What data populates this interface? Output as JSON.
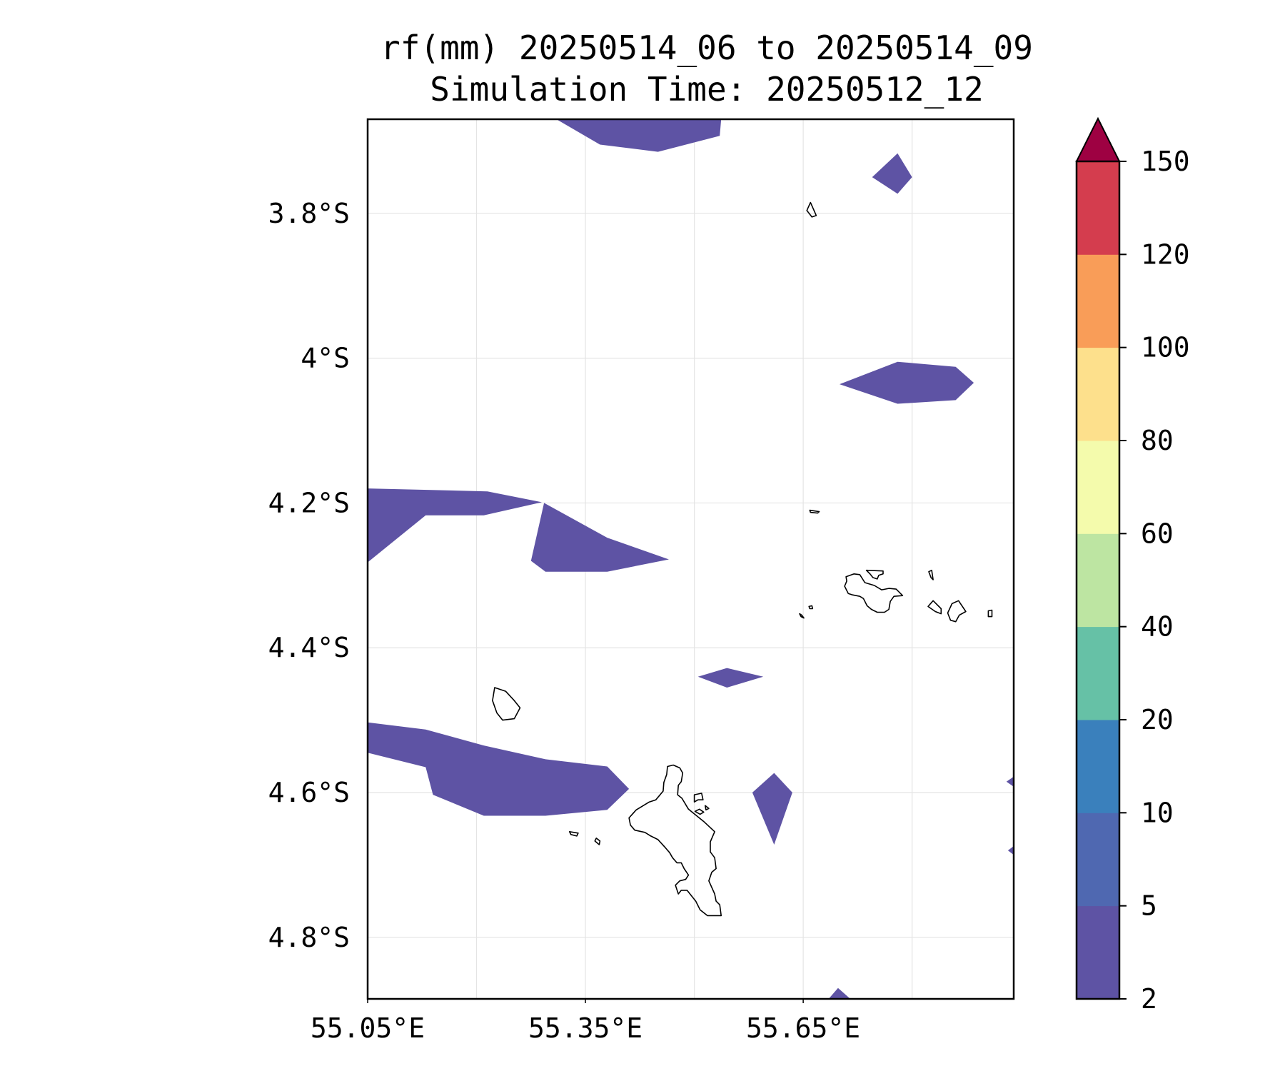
{
  "title": {
    "line1": "rf(mm) 20250514_06 to 20250514_09",
    "line2": "Simulation Time: 20250512_12"
  },
  "map": {
    "lon_range": [
      55.05,
      55.94
    ],
    "lat_range": [
      -3.67,
      -4.885
    ],
    "x_ticks": [
      {
        "lon": 55.05,
        "label": "55.05°E"
      },
      {
        "lon": 55.35,
        "label": "55.35°E"
      },
      {
        "lon": 55.65,
        "label": "55.65°E"
      }
    ],
    "x_gridlines": [
      55.2,
      55.35,
      55.5,
      55.65,
      55.8
    ],
    "y_ticks": [
      {
        "lat": -3.8,
        "label": "3.8°S"
      },
      {
        "lat": -4.0,
        "label": "4°S"
      },
      {
        "lat": -4.2,
        "label": "4.2°S"
      },
      {
        "lat": -4.4,
        "label": "4.4°S"
      },
      {
        "lat": -4.6,
        "label": "4.6°S"
      },
      {
        "lat": -4.8,
        "label": "4.8°S"
      }
    ],
    "grid": true,
    "rain_color": "#5e53a4",
    "rain_level": "2–5 mm",
    "rain_cells": [
      [
        [
          55.31,
          -3.67
        ],
        [
          55.37,
          -3.705
        ],
        [
          55.45,
          -3.715
        ],
        [
          55.535,
          -3.693
        ],
        [
          55.537,
          -3.67
        ]
      ],
      [
        [
          55.745,
          -3.75
        ],
        [
          55.78,
          -3.717
        ],
        [
          55.8,
          -3.75
        ],
        [
          55.78,
          -3.773
        ]
      ],
      [
        [
          55.7,
          -4.036
        ],
        [
          55.78,
          -4.005
        ],
        [
          55.86,
          -4.012
        ],
        [
          55.885,
          -4.034
        ],
        [
          55.86,
          -4.058
        ],
        [
          55.78,
          -4.063
        ]
      ],
      [
        [
          55.05,
          -4.18
        ],
        [
          55.215,
          -4.184
        ],
        [
          55.29,
          -4.199
        ],
        [
          55.21,
          -4.217
        ],
        [
          55.13,
          -4.217
        ],
        [
          55.05,
          -4.282
        ]
      ],
      [
        [
          55.293,
          -4.2
        ],
        [
          55.38,
          -4.248
        ],
        [
          55.465,
          -4.278
        ],
        [
          55.38,
          -4.295
        ],
        [
          55.295,
          -4.295
        ],
        [
          55.275,
          -4.28
        ]
      ],
      [
        [
          55.505,
          -4.44
        ],
        [
          55.545,
          -4.428
        ],
        [
          55.595,
          -4.44
        ],
        [
          55.545,
          -4.455
        ]
      ],
      [
        [
          55.05,
          -4.503
        ],
        [
          55.13,
          -4.513
        ],
        [
          55.21,
          -4.535
        ],
        [
          55.295,
          -4.554
        ],
        [
          55.38,
          -4.564
        ],
        [
          55.41,
          -4.595
        ],
        [
          55.38,
          -4.624
        ],
        [
          55.295,
          -4.632
        ],
        [
          55.21,
          -4.632
        ],
        [
          55.14,
          -4.603
        ],
        [
          55.13,
          -4.565
        ],
        [
          55.05,
          -4.545
        ]
      ],
      [
        [
          55.58,
          -4.6
        ],
        [
          55.61,
          -4.573
        ],
        [
          55.635,
          -4.6
        ],
        [
          55.61,
          -4.672
        ]
      ],
      [
        [
          55.685,
          -4.885
        ],
        [
          55.698,
          -4.87
        ],
        [
          55.715,
          -4.885
        ]
      ],
      [
        [
          55.94,
          -4.674
        ],
        [
          55.932,
          -4.68
        ],
        [
          55.94,
          -4.686
        ]
      ],
      [
        [
          55.93,
          -4.585
        ],
        [
          55.94,
          -4.578
        ],
        [
          55.94,
          -4.592
        ]
      ]
    ],
    "coastlines": [
      [
        [
          55.41,
          -4.635
        ],
        [
          55.42,
          -4.624
        ],
        [
          55.438,
          -4.613
        ],
        [
          55.447,
          -4.61
        ],
        [
          55.457,
          -4.598
        ],
        [
          55.458,
          -4.586
        ],
        [
          55.462,
          -4.575
        ],
        [
          55.463,
          -4.564
        ],
        [
          55.471,
          -4.562
        ],
        [
          55.48,
          -4.566
        ],
        [
          55.484,
          -4.573
        ],
        [
          55.482,
          -4.585
        ],
        [
          55.478,
          -4.59
        ],
        [
          55.477,
          -4.603
        ],
        [
          55.483,
          -4.608
        ],
        [
          55.492,
          -4.623
        ],
        [
          55.513,
          -4.64
        ],
        [
          55.528,
          -4.654
        ],
        [
          55.522,
          -4.668
        ],
        [
          55.522,
          -4.682
        ],
        [
          55.528,
          -4.69
        ],
        [
          55.53,
          -4.705
        ],
        [
          55.524,
          -4.71
        ],
        [
          55.52,
          -4.722
        ],
        [
          55.528,
          -4.74
        ],
        [
          55.53,
          -4.75
        ],
        [
          55.535,
          -4.755
        ],
        [
          55.537,
          -4.77
        ],
        [
          55.518,
          -4.77
        ],
        [
          55.508,
          -4.762
        ],
        [
          55.502,
          -4.75
        ],
        [
          55.494,
          -4.74
        ],
        [
          55.49,
          -4.735
        ],
        [
          55.482,
          -4.735
        ],
        [
          55.478,
          -4.74
        ],
        [
          55.474,
          -4.728
        ],
        [
          55.48,
          -4.722
        ],
        [
          55.488,
          -4.72
        ],
        [
          55.492,
          -4.714
        ],
        [
          55.486,
          -4.705
        ],
        [
          55.482,
          -4.697
        ],
        [
          55.476,
          -4.697
        ],
        [
          55.47,
          -4.69
        ],
        [
          55.466,
          -4.683
        ],
        [
          55.46,
          -4.676
        ],
        [
          55.45,
          -4.665
        ],
        [
          55.44,
          -4.66
        ],
        [
          55.432,
          -4.655
        ],
        [
          55.418,
          -4.652
        ],
        [
          55.412,
          -4.645
        ]
      ],
      [
        [
          55.225,
          -4.455
        ],
        [
          55.24,
          -4.46
        ],
        [
          55.252,
          -4.473
        ],
        [
          55.26,
          -4.483
        ],
        [
          55.252,
          -4.498
        ],
        [
          55.236,
          -4.5
        ],
        [
          55.228,
          -4.49
        ],
        [
          55.222,
          -4.473
        ]
      ],
      [
        [
          55.709,
          -4.302
        ],
        [
          55.72,
          -4.298
        ],
        [
          55.728,
          -4.299
        ],
        [
          55.735,
          -4.31
        ],
        [
          55.748,
          -4.314
        ],
        [
          55.758,
          -4.32
        ],
        [
          55.768,
          -4.318
        ],
        [
          55.778,
          -4.319
        ],
        [
          55.787,
          -4.328
        ],
        [
          55.775,
          -4.329
        ],
        [
          55.77,
          -4.336
        ],
        [
          55.768,
          -4.347
        ],
        [
          55.762,
          -4.351
        ],
        [
          55.752,
          -4.351
        ],
        [
          55.744,
          -4.347
        ],
        [
          55.738,
          -4.342
        ],
        [
          55.733,
          -4.332
        ],
        [
          55.728,
          -4.329
        ],
        [
          55.718,
          -4.327
        ],
        [
          55.712,
          -4.325
        ],
        [
          55.707,
          -4.315
        ],
        [
          55.71,
          -4.308
        ]
      ],
      [
        [
          55.737,
          -4.293
        ],
        [
          55.76,
          -4.294
        ],
        [
          55.76,
          -4.298
        ],
        [
          55.754,
          -4.3
        ],
        [
          55.752,
          -4.305
        ],
        [
          55.746,
          -4.303
        ],
        [
          55.742,
          -4.298
        ]
      ],
      [
        [
          55.855,
          -4.339
        ],
        [
          55.864,
          -4.335
        ],
        [
          55.874,
          -4.35
        ],
        [
          55.865,
          -4.355
        ],
        [
          55.86,
          -4.364
        ],
        [
          55.853,
          -4.362
        ],
        [
          55.849,
          -4.352
        ]
      ],
      [
        [
          55.822,
          -4.343
        ],
        [
          55.829,
          -4.335
        ],
        [
          55.84,
          -4.346
        ],
        [
          55.84,
          -4.353
        ],
        [
          55.832,
          -4.35
        ]
      ],
      [
        [
          55.823,
          -4.295
        ],
        [
          55.827,
          -4.293
        ],
        [
          55.829,
          -4.306
        ],
        [
          55.826,
          -4.303
        ]
      ],
      [
        [
          55.659,
          -4.21
        ],
        [
          55.672,
          -4.212
        ],
        [
          55.67,
          -4.214
        ],
        [
          55.66,
          -4.213
        ]
      ],
      [
        [
          55.658,
          -4.343
        ],
        [
          55.662,
          -4.342
        ],
        [
          55.663,
          -4.346
        ],
        [
          55.659,
          -4.346
        ]
      ],
      [
        [
          55.645,
          -4.353
        ],
        [
          55.648,
          -4.355
        ],
        [
          55.651,
          -4.359
        ],
        [
          55.647,
          -4.357
        ]
      ],
      [
        [
          55.905,
          -4.349
        ],
        [
          55.91,
          -4.348
        ],
        [
          55.91,
          -4.357
        ],
        [
          55.905,
          -4.357
        ]
      ],
      [
        [
          55.655,
          -3.796
        ],
        [
          55.66,
          -3.785
        ],
        [
          55.668,
          -3.803
        ],
        [
          55.662,
          -3.805
        ]
      ],
      [
        [
          55.328,
          -4.654
        ],
        [
          55.34,
          -4.656
        ],
        [
          55.338,
          -4.66
        ],
        [
          55.33,
          -4.658
        ]
      ],
      [
        [
          55.365,
          -4.663
        ],
        [
          55.37,
          -4.667
        ],
        [
          55.369,
          -4.672
        ],
        [
          55.363,
          -4.667
        ]
      ],
      [
        [
          55.5,
          -4.603
        ],
        [
          55.51,
          -4.601
        ],
        [
          55.512,
          -4.61
        ],
        [
          55.505,
          -4.61
        ],
        [
          55.5,
          -4.613
        ]
      ],
      [
        [
          55.507,
          -4.623
        ],
        [
          55.513,
          -4.627
        ],
        [
          55.508,
          -4.63
        ],
        [
          55.501,
          -4.626
        ]
      ],
      [
        [
          55.515,
          -4.618
        ],
        [
          55.52,
          -4.622
        ],
        [
          55.516,
          -4.624
        ]
      ]
    ]
  },
  "colorbar": {
    "levels": [
      2,
      5,
      10,
      20,
      40,
      60,
      80,
      100,
      120,
      150
    ],
    "colors": [
      "#5e53a4",
      "#4f68b1",
      "#3a80bc",
      "#66c1a6",
      "#bde5a2",
      "#f4fbac",
      "#fde08c",
      "#f99d58",
      "#d43d4e"
    ],
    "extend_color": "#9e0142",
    "extend": "max"
  }
}
